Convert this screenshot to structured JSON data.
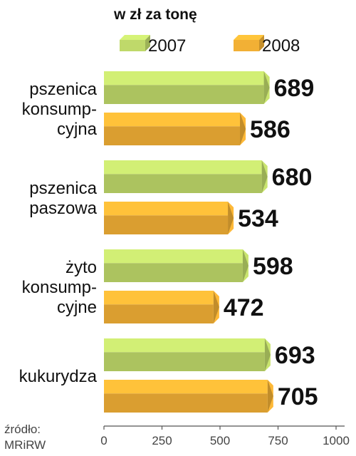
{
  "chart_data": {
    "type": "bar",
    "orientation": "horizontal",
    "unit_label": "w zł za tonę",
    "categories": [
      [
        "pszenica",
        "konsump-",
        "cyjna"
      ],
      [
        "pszenica",
        "paszowa"
      ],
      [
        "żyto",
        "konsump-",
        "cyjne"
      ],
      [
        "kukurydza"
      ]
    ],
    "series": [
      {
        "name": "2007",
        "values": [
          689,
          680,
          598,
          693
        ],
        "color": "#bfd96a"
      },
      {
        "name": "2008",
        "values": [
          586,
          534,
          472,
          705
        ],
        "color": "#f2b035"
      }
    ],
    "xlim": [
      0,
      1000
    ],
    "x_ticks": [
      0,
      250,
      500,
      750,
      1000
    ],
    "grid": false,
    "legend": "top",
    "source": [
      "źródło:",
      "MRiRW"
    ]
  }
}
